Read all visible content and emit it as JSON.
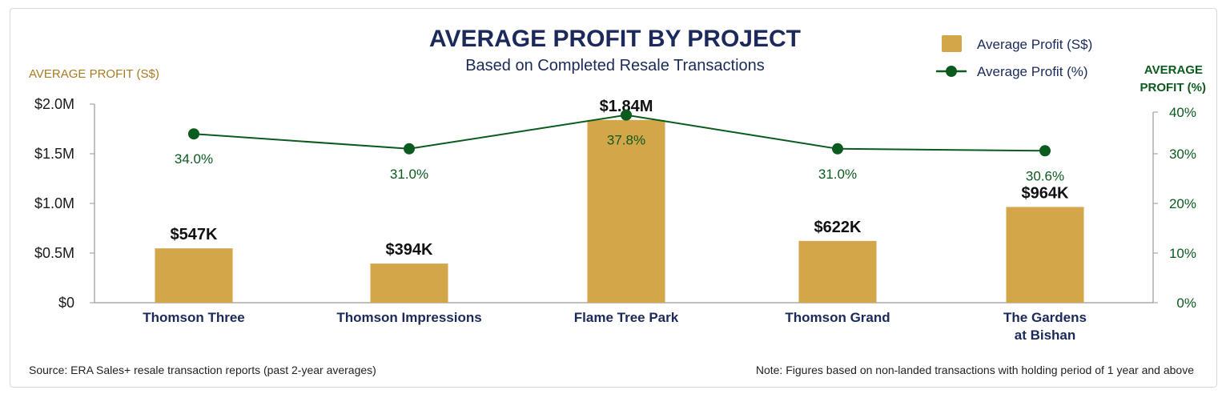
{
  "chart_data": {
    "type": "bar",
    "title": "AVERAGE PROFIT BY PROJECT",
    "subtitle": "Based on Completed Resale Transactions",
    "categories": [
      [
        "Thomson Three"
      ],
      [
        "Thomson Impressions"
      ],
      [
        "Flame Tree Park"
      ],
      [
        "Thomson Grand"
      ],
      [
        "The Gardens",
        "at Bishan"
      ]
    ],
    "series": [
      {
        "name": "Average Profit (S$)",
        "type": "bar",
        "axis": "left",
        "values": [
          547000,
          394000,
          1840000,
          622000,
          964000
        ],
        "labels": [
          "$547K",
          "$394K",
          "$1.84M",
          "$622K",
          "$964K"
        ],
        "color": "#d4a64a"
      },
      {
        "name": "Average Profit (%)",
        "type": "line",
        "axis": "right",
        "values": [
          34.0,
          31.0,
          37.8,
          31.0,
          30.6
        ],
        "labels": [
          "34.0%",
          "31.0%",
          "37.8%",
          "31.0%",
          "30.6%"
        ],
        "color": "#0b5a1e"
      }
    ],
    "ylabel_left": "AVERAGE PROFIT (S$)",
    "ylabel_right": [
      "AVERAGE",
      "PROFIT (%)"
    ],
    "ylim_left": [
      0,
      2000000
    ],
    "yticks_left": [
      "$0",
      "$0.5M",
      "$1.0M",
      "$1.5M",
      "$2.0M"
    ],
    "ylim_right": [
      0,
      40
    ],
    "yticks_right": [
      "0%",
      "10%",
      "20%",
      "30%",
      "40%"
    ],
    "grid": false,
    "legend": "top-right"
  },
  "footer": {
    "source": "Source: ERA Sales+ resale transaction reports (past 2-year averages)",
    "note": "Note: Figures based on non-landed transactions with holding period of 1 year and above"
  }
}
